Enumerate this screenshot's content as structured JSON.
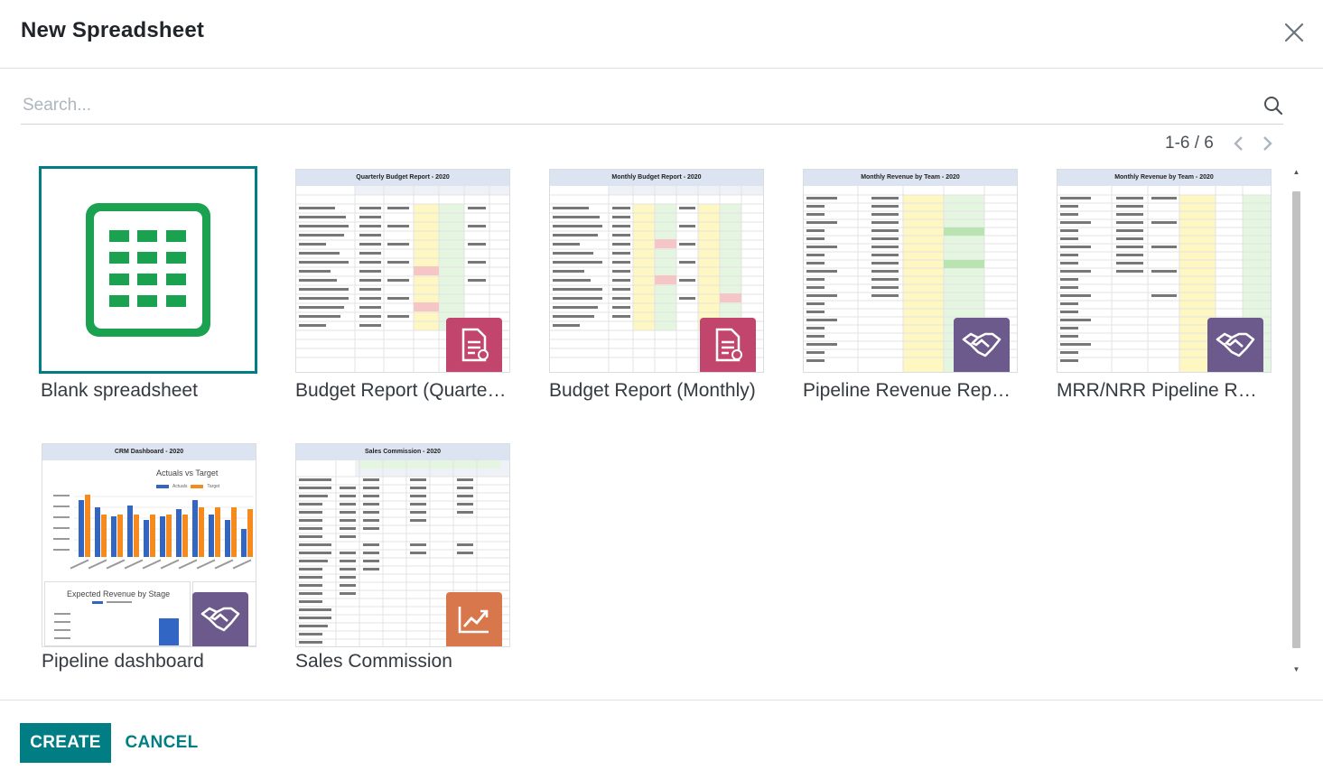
{
  "dialog": {
    "title": "New Spreadsheet"
  },
  "search": {
    "placeholder": "Search..."
  },
  "pager": {
    "value": "1-6 / 6"
  },
  "templates": [
    {
      "label": "Blank spreadsheet",
      "selected": true,
      "badge": ""
    },
    {
      "label": "Budget Report (Quarterly)",
      "sheet_title": "Quarterly Budget Report - 2020",
      "badge": "document-icon",
      "badge_color": "#c2456e"
    },
    {
      "label": "Budget Report (Monthly)",
      "sheet_title": "Monthly Budget Report - 2020",
      "badge": "document-icon",
      "badge_color": "#c2456e"
    },
    {
      "label": "Pipeline Revenue Report (Monthly)",
      "sheet_title": "Monthly Revenue by Team - 2020",
      "badge": "handshake-icon",
      "badge_color": "#6d5a8c"
    },
    {
      "label": "MRR/NRR Pipeline Revenue",
      "sheet_title": "Monthly Revenue by Team - 2020",
      "badge": "handshake-icon",
      "badge_color": "#6d5a8c"
    },
    {
      "label": "Pipeline dashboard",
      "sheet_title": "CRM Dashboard - 2020",
      "chart1_title": "Actuals vs Target",
      "chart2_title": "Expected Revenue by Stage",
      "legend_actuals": "Actuals",
      "legend_target": "Target",
      "badge": "handshake-icon",
      "badge_color": "#6d5a8c"
    },
    {
      "label": "Sales Commission",
      "sheet_title": "Sales Commission - 2020",
      "badge": "trend-icon",
      "badge_color": "#d9774c"
    }
  ],
  "footer": {
    "create_label": "CREATE",
    "cancel_label": "CANCEL"
  },
  "colors": {
    "accent": "#017e84",
    "sheets_green": "#1aa250"
  }
}
